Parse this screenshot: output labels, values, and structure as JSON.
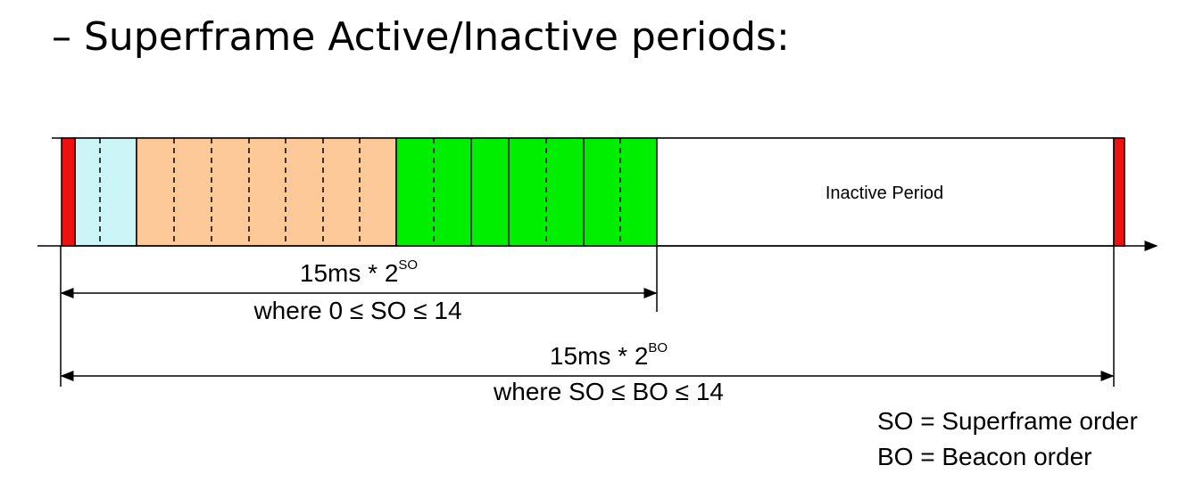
{
  "title": "– Superframe Active/Inactive periods:",
  "inactive_label": "Inactive Period",
  "so_span": {
    "base": "15ms * 2",
    "exponent": "SO",
    "condition": "where 0 ≤ SO ≤ 14"
  },
  "bo_span": {
    "base": "15ms * 2",
    "exponent": "BO",
    "condition": "where SO ≤ BO ≤ 14"
  },
  "legend": [
    "SO = Superframe order",
    "BO = Beacon order"
  ],
  "colors": {
    "beacon": "#ee1111",
    "cap_light": "#ccf5f8",
    "cap": "#fdc998",
    "cfp": "#00ee00",
    "outline": "#000000"
  }
}
